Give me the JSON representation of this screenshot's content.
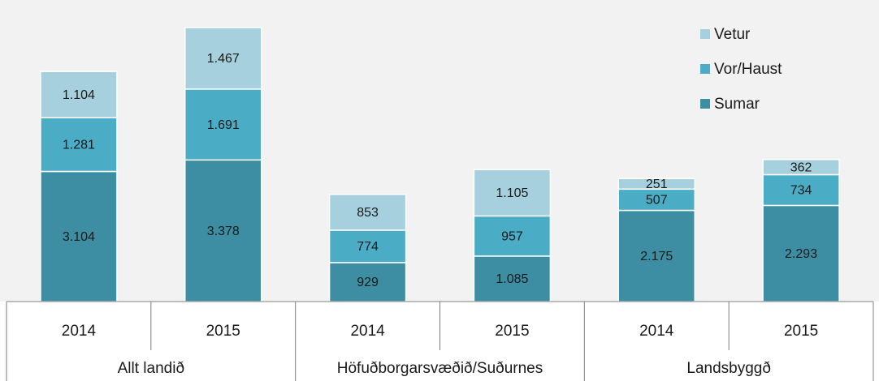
{
  "chart_data": {
    "type": "stacked-bar",
    "categories": [
      "2014",
      "2015",
      "2014",
      "2015",
      "2014",
      "2015"
    ],
    "groups": [
      {
        "name": "Allt landið",
        "categories": [
          "2014",
          "2015"
        ]
      },
      {
        "name": "Höfuðborgarsvæðið/Suðurnes",
        "categories": [
          "2014",
          "2015"
        ]
      },
      {
        "name": "Landsbyggð",
        "categories": [
          "2014",
          "2015"
        ]
      }
    ],
    "series": [
      {
        "name": "Sumar",
        "color": "#3d8ea3",
        "values": [
          3104,
          3378,
          929,
          1085,
          2175,
          2293
        ],
        "value_labels": [
          "3.104",
          "3.378",
          "929",
          "1.085",
          "2.175",
          "2.293"
        ]
      },
      {
        "name": "Vor/Haust",
        "color": "#4bacc6",
        "values": [
          1281,
          1691,
          774,
          957,
          507,
          734
        ],
        "value_labels": [
          "1.281",
          "1.691",
          "774",
          "957",
          "507",
          "734"
        ]
      },
      {
        "name": "Vetur",
        "color": "#a6d0dd",
        "values": [
          1104,
          1467,
          853,
          1105,
          251,
          362
        ],
        "value_labels": [
          "1.104",
          "1.467",
          "853",
          "1.105",
          "251",
          "362"
        ]
      }
    ],
    "ylim": [
      0,
      7000
    ],
    "legend": "top-right"
  }
}
